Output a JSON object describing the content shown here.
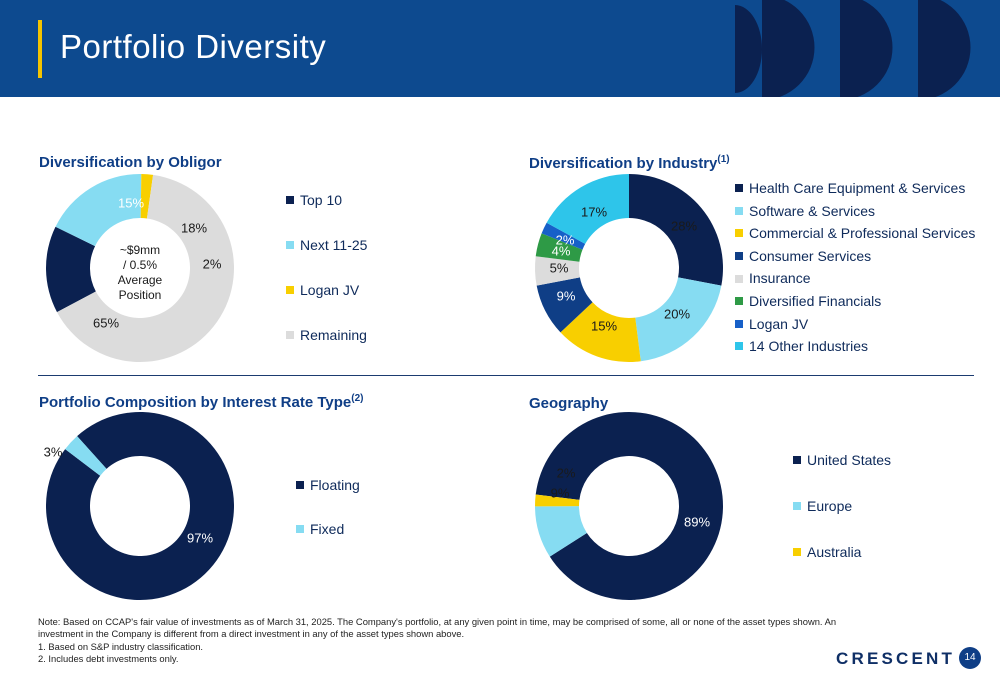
{
  "header": {
    "title": "Portfolio Diversity"
  },
  "sections": {
    "obligor_title": "Diversification by Obligor",
    "industry_title": "Diversification by Industry",
    "industry_sup": "(1)",
    "rate_title": "Portfolio Composition by Interest Rate Type",
    "rate_sup": "(2)",
    "geo_title": "Geography"
  },
  "obligor_center": {
    "line1": "~$9mm",
    "line2": "/ 0.5%",
    "line3": "Average",
    "line4": "Position"
  },
  "colors": {
    "navy": "#0b2150",
    "lightblue": "#86dcf2",
    "yellow": "#f8cf00",
    "gray": "#dcdcdc",
    "navy2": "#0f3e86",
    "green": "#2e9a46",
    "blue": "#1760c8",
    "cyan": "#2ec5ea",
    "header": "#0d4a8f",
    "accent": "#f5c400"
  },
  "chart_data": [
    {
      "type": "pie",
      "title": "Diversification by Obligor",
      "categories": [
        "Top 10",
        "Next 11-25",
        "Logan JV",
        "Remaining"
      ],
      "values": [
        15,
        18,
        2,
        65
      ],
      "labels": [
        "15%",
        "18%",
        "2%",
        "65%"
      ],
      "colors": [
        "#0b2150",
        "#86dcf2",
        "#f8cf00",
        "#dcdcdc"
      ],
      "legend_position": "right"
    },
    {
      "type": "pie",
      "title": "Diversification by Industry",
      "categories": [
        "Health Care Equipment & Services",
        "Software & Services",
        "Commercial & Professional Services",
        "Consumer Services",
        "Insurance",
        "Diversified Financials",
        "Logan JV",
        "14 Other Industries"
      ],
      "values": [
        28,
        20,
        15,
        9,
        5,
        4,
        2,
        17
      ],
      "labels": [
        "28%",
        "20%",
        "15%",
        "9%",
        "5%",
        "4%",
        "2%",
        "17%"
      ],
      "colors": [
        "#0b2150",
        "#86dcf2",
        "#f8cf00",
        "#0f3e86",
        "#dcdcdc",
        "#2e9a46",
        "#1760c8",
        "#2ec5ea"
      ],
      "legend_position": "right"
    },
    {
      "type": "pie",
      "title": "Portfolio Composition by Interest Rate Type",
      "categories": [
        "Floating",
        "Fixed"
      ],
      "values": [
        97,
        3
      ],
      "labels": [
        "97%",
        "3%"
      ],
      "colors": [
        "#0b2150",
        "#86dcf2"
      ],
      "legend_position": "right"
    },
    {
      "type": "pie",
      "title": "Geography",
      "categories": [
        "United States",
        "Europe",
        "Australia"
      ],
      "values": [
        89,
        9,
        2
      ],
      "labels": [
        "89%",
        "9%",
        "2%"
      ],
      "colors": [
        "#0b2150",
        "#86dcf2",
        "#f8cf00"
      ],
      "legend_position": "right"
    }
  ],
  "footnotes": {
    "line1": "Note: Based on CCAP's fair value of investments as of March 31, 2025. The Company's portfolio, at any given point in time, may be comprised of some, all or none of the asset types shown. An",
    "line2": "investment in the Company is different from a direct investment in any of the asset types shown above.",
    "line3": "1.  Based on S&P industry classification.",
    "line4": "2.  Includes debt investments only."
  },
  "footer": {
    "logo": "CRESCENT",
    "page": "14"
  }
}
